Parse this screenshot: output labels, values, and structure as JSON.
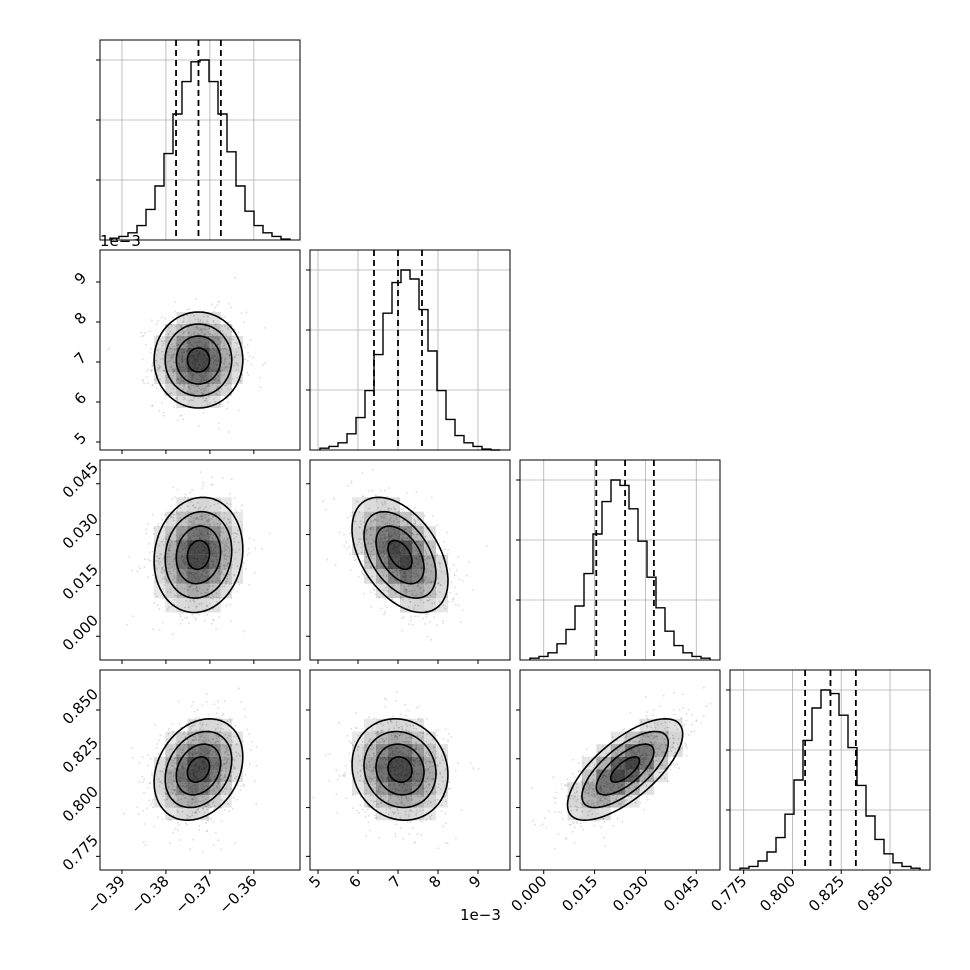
{
  "chart_data": {
    "type": "corner",
    "parameters": [
      {
        "range": [
          -0.395,
          -0.3495
        ],
        "ticks": [
          -0.39,
          -0.38,
          -0.37,
          -0.36
        ],
        "tick_labels": [
          "−0.39",
          "−0.38",
          "−0.37",
          "−0.36"
        ],
        "offset_label": ""
      },
      {
        "range": [
          0.0048,
          0.0098
        ],
        "ticks": [
          0.005,
          0.006,
          0.007,
          0.008,
          0.009
        ],
        "tick_labels": [
          "5",
          "6",
          "7",
          "8",
          "9"
        ],
        "offset_label": "1e−3"
      },
      {
        "range": [
          -0.007,
          0.052
        ],
        "ticks": [
          0.0,
          0.015,
          0.03,
          0.045
        ],
        "tick_labels": [
          "0.000",
          "0.015",
          "0.030",
          "0.045"
        ],
        "offset_label": ""
      },
      {
        "range": [
          0.768,
          0.8705
        ],
        "ticks": [
          0.775,
          0.8,
          0.825,
          0.85
        ],
        "tick_labels": [
          "0.775",
          "0.800",
          "0.825",
          "0.850"
        ],
        "offset_label": ""
      }
    ],
    "histograms": [
      {
        "bin_values": [
          0.01,
          0.02,
          0.04,
          0.08,
          0.17,
          0.3,
          0.48,
          0.7,
          0.88,
          0.99,
          1.0,
          0.88,
          0.7,
          0.49,
          0.3,
          0.16,
          0.08,
          0.04,
          0.02,
          0.005
        ],
        "quantiles": [
          -0.3777,
          -0.3726,
          -0.3675
        ]
      },
      {
        "bin_values": [
          0.01,
          0.02,
          0.04,
          0.09,
          0.18,
          0.33,
          0.53,
          0.76,
          0.93,
          1.0,
          0.95,
          0.78,
          0.55,
          0.33,
          0.17,
          0.08,
          0.04,
          0.02,
          0.005,
          0.0
        ],
        "quantiles": [
          0.0064,
          0.007,
          0.0076
        ]
      },
      {
        "bin_values": [
          0.01,
          0.02,
          0.04,
          0.09,
          0.17,
          0.3,
          0.48,
          0.7,
          0.88,
          1.0,
          0.97,
          0.84,
          0.66,
          0.46,
          0.29,
          0.16,
          0.08,
          0.04,
          0.02,
          0.01
        ],
        "quantiles": [
          0.0155,
          0.024,
          0.0325
        ]
      },
      {
        "bin_values": [
          0.01,
          0.02,
          0.05,
          0.1,
          0.18,
          0.31,
          0.5,
          0.72,
          0.9,
          1.0,
          0.98,
          0.86,
          0.68,
          0.47,
          0.3,
          0.17,
          0.09,
          0.04,
          0.02,
          0.01
        ],
        "quantiles": [
          0.8065,
          0.8195,
          0.8325
        ]
      }
    ],
    "pairs": [
      {
        "row": 1,
        "col": 0,
        "mean": [
          -0.3726,
          0.00705
        ],
        "std": [
          0.00505,
          0.0006
        ],
        "rho": 0.0
      },
      {
        "row": 2,
        "col": 0,
        "mean": [
          -0.3726,
          0.024
        ],
        "std": [
          0.00505,
          0.0085
        ],
        "rho": 0.1
      },
      {
        "row": 2,
        "col": 1,
        "mean": [
          0.00705,
          0.024
        ],
        "std": [
          0.0006,
          0.0085
        ],
        "rho": -0.45
      },
      {
        "row": 3,
        "col": 0,
        "mean": [
          -0.3726,
          0.8195
        ],
        "std": [
          0.00505,
          0.013
        ],
        "rho": 0.25
      },
      {
        "row": 3,
        "col": 1,
        "mean": [
          0.00705,
          0.8195
        ],
        "std": [
          0.0006,
          0.013
        ],
        "rho": -0.1
      },
      {
        "row": 3,
        "col": 2,
        "mean": [
          0.024,
          0.8195
        ],
        "std": [
          0.0085,
          0.013
        ],
        "rho": 0.7
      }
    ],
    "contour_levels": [
      0.5,
      1.0,
      1.5,
      2.0
    ],
    "grid": true,
    "colors": {
      "line": "#000000",
      "grid": "#b0b0b0",
      "points": "#999999",
      "density": "#000000"
    }
  }
}
